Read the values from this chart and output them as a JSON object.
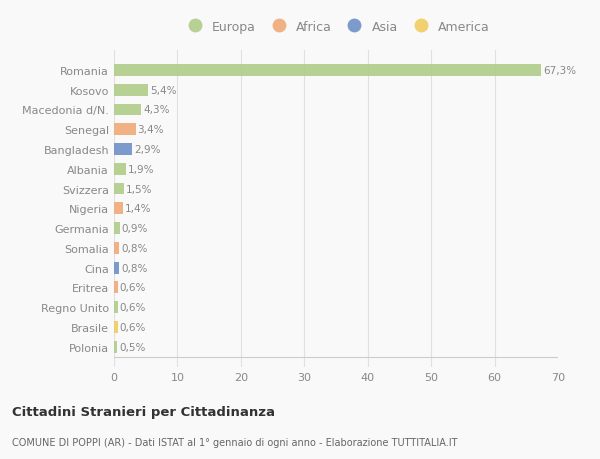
{
  "categories": [
    "Polonia",
    "Brasile",
    "Regno Unito",
    "Eritrea",
    "Cina",
    "Somalia",
    "Germania",
    "Nigeria",
    "Svizzera",
    "Albania",
    "Bangladesh",
    "Senegal",
    "Macedonia d/N.",
    "Kosovo",
    "Romania"
  ],
  "values": [
    0.5,
    0.6,
    0.6,
    0.6,
    0.8,
    0.8,
    0.9,
    1.4,
    1.5,
    1.9,
    2.9,
    3.4,
    4.3,
    5.4,
    67.3
  ],
  "labels": [
    "0,5%",
    "0,6%",
    "0,6%",
    "0,6%",
    "0,8%",
    "0,8%",
    "0,9%",
    "1,4%",
    "1,5%",
    "1,9%",
    "2,9%",
    "3,4%",
    "4,3%",
    "5,4%",
    "67,3%"
  ],
  "continent": [
    "Europa",
    "America",
    "Europa",
    "Africa",
    "Asia",
    "Africa",
    "Europa",
    "Africa",
    "Europa",
    "Europa",
    "Asia",
    "Africa",
    "Europa",
    "Europa",
    "Europa"
  ],
  "colors": {
    "Europa": "#b0cc88",
    "Africa": "#f0aa78",
    "Asia": "#7090c8",
    "America": "#f0cc60"
  },
  "legend_order": [
    "Europa",
    "Africa",
    "Asia",
    "America"
  ],
  "title": "Cittadini Stranieri per Cittadinanza",
  "subtitle": "COMUNE DI POPPI (AR) - Dati ISTAT al 1° gennaio di ogni anno - Elaborazione TUTTITALIA.IT",
  "xlim": [
    0,
    70
  ],
  "xticks": [
    0,
    10,
    20,
    30,
    40,
    50,
    60,
    70
  ],
  "background_color": "#f9f9f9",
  "plot_bg_color": "#f9f9f9",
  "grid_color": "#e0e0e0",
  "bar_height": 0.6,
  "label_color": "#888888",
  "text_color": "#888888"
}
